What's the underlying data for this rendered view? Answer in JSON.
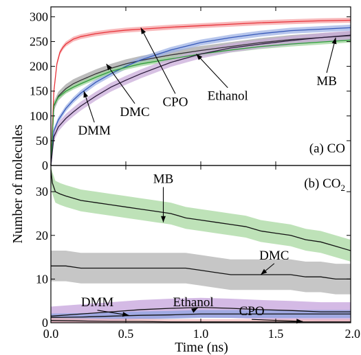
{
  "chart_data": [
    {
      "type": "line",
      "panel_label": "(a) CO",
      "ylabel": "Number of molecules",
      "xlim": [
        0.0,
        2.0
      ],
      "ylim": [
        0,
        320
      ],
      "yticks": [
        "0",
        "50",
        "100",
        "150",
        "200",
        "250",
        "300"
      ],
      "grid": false,
      "series": [
        {
          "name": "CPO",
          "color": "#e8333a",
          "band_color": "#f5a3a6",
          "x": [
            0,
            0.02,
            0.04,
            0.06,
            0.08,
            0.1,
            0.15,
            0.2,
            0.3,
            0.4,
            0.5,
            0.6,
            0.8,
            1.0,
            1.2,
            1.4,
            1.6,
            1.8,
            2.0
          ],
          "y": [
            0,
            150,
            205,
            228,
            238,
            245,
            255,
            260,
            266,
            270,
            273,
            275,
            279,
            282,
            285,
            288,
            290,
            292,
            293
          ],
          "band": 5
        },
        {
          "name": "DMC",
          "color": "#333333",
          "band_color": "#a6a6a6",
          "x": [
            0,
            0.02,
            0.05,
            0.1,
            0.15,
            0.2,
            0.3,
            0.4,
            0.5,
            0.6,
            0.8,
            1.0,
            1.2,
            1.4,
            1.6,
            1.8,
            2.0
          ],
          "y": [
            0,
            120,
            140,
            155,
            165,
            172,
            185,
            196,
            205,
            212,
            223,
            232,
            240,
            248,
            254,
            258,
            262
          ],
          "band": 9
        },
        {
          "name": "DMM",
          "color": "#3658b8",
          "band_color": "#9fb3e6",
          "x": [
            0,
            0.02,
            0.05,
            0.1,
            0.15,
            0.2,
            0.3,
            0.4,
            0.5,
            0.6,
            0.8,
            1.0,
            1.2,
            1.4,
            1.6,
            1.8,
            2.0
          ],
          "y": [
            0,
            70,
            92,
            115,
            132,
            146,
            168,
            185,
            200,
            213,
            233,
            248,
            258,
            266,
            272,
            275,
            278
          ],
          "band": 6
        },
        {
          "name": "Ethanol",
          "color": "#2f9e3a",
          "band_color": "#9fd69c",
          "x": [
            0,
            0.02,
            0.05,
            0.1,
            0.15,
            0.2,
            0.3,
            0.4,
            0.5,
            0.6,
            0.8,
            1.0,
            1.2,
            1.4,
            1.6,
            1.8,
            2.0
          ],
          "y": [
            0,
            122,
            138,
            150,
            158,
            165,
            178,
            190,
            198,
            205,
            215,
            225,
            233,
            240,
            245,
            249,
            253
          ],
          "band": 5
        },
        {
          "name": "MB",
          "color": "#2a1a3a",
          "band_color": "#c9acd9",
          "x": [
            0,
            0.02,
            0.05,
            0.1,
            0.15,
            0.2,
            0.3,
            0.4,
            0.5,
            0.6,
            0.8,
            1.0,
            1.2,
            1.4,
            1.6,
            1.8,
            2.0
          ],
          "y": [
            0,
            58,
            78,
            95,
            108,
            120,
            140,
            158,
            172,
            185,
            208,
            225,
            237,
            245,
            252,
            258,
            263
          ],
          "band": 9
        }
      ],
      "annotations": [
        {
          "text": "CPO",
          "xy": [
            0.6,
            278
          ],
          "xytext": [
            0.83,
            120
          ]
        },
        {
          "text": "DMC",
          "xy": [
            0.37,
            205
          ],
          "xytext": [
            0.56,
            100
          ]
        },
        {
          "text": "DMM",
          "xy": [
            0.22,
            150
          ],
          "xytext": [
            0.29,
            62
          ]
        },
        {
          "text": "Ethanol",
          "xy": [
            0.97,
            225
          ],
          "xytext": [
            1.18,
            132
          ]
        },
        {
          "text": "MB",
          "xy": [
            1.9,
            258
          ],
          "xytext": [
            1.84,
            162
          ]
        }
      ]
    },
    {
      "type": "line",
      "panel_label": "(b) CO",
      "panel_label_sub": "2",
      "xlabel": "Time (ns)",
      "xlim": [
        0.0,
        2.0
      ],
      "ylim": [
        0,
        36
      ],
      "xticks": [
        "0.0",
        "0.5",
        "1.0",
        "1.5",
        "2.0"
      ],
      "yticks": [
        "0",
        "10",
        "20",
        "30"
      ],
      "grid": false,
      "series": [
        {
          "name": "MB",
          "color": "#111111",
          "band_color": "#a8d8a0",
          "x": [
            0,
            0.01,
            0.03,
            0.06,
            0.1,
            0.2,
            0.3,
            0.4,
            0.5,
            0.6,
            0.7,
            0.8,
            0.9,
            1.0,
            1.1,
            1.2,
            1.3,
            1.4,
            1.5,
            1.6,
            1.7,
            1.8,
            1.9,
            2.0
          ],
          "y": [
            35,
            32,
            30,
            29.5,
            29,
            28,
            27.5,
            27,
            26.5,
            26,
            25.5,
            25,
            24,
            23.5,
            23,
            22.5,
            22,
            21,
            20.5,
            20,
            19,
            18.5,
            17.5,
            16.5
          ],
          "band": 2.5
        },
        {
          "name": "DMC",
          "color": "#111111",
          "band_color": "#b3b3b3",
          "x": [
            0,
            0.05,
            0.1,
            0.2,
            0.3,
            0.4,
            0.5,
            0.6,
            0.7,
            0.8,
            0.9,
            1.0,
            1.1,
            1.2,
            1.3,
            1.4,
            1.5,
            1.6,
            1.7,
            1.8,
            1.9,
            2.0
          ],
          "y": [
            13,
            13,
            13,
            12.5,
            12.5,
            12.5,
            12.5,
            12.5,
            12.5,
            12.5,
            12.5,
            12,
            11.5,
            11,
            11,
            11,
            11,
            11,
            10.5,
            10.5,
            10,
            10
          ],
          "band": 3.5
        },
        {
          "name": "Ethanol",
          "color": "#111111",
          "band_color": "#c5a3dc",
          "x": [
            0,
            0.2,
            0.4,
            0.6,
            0.8,
            1.0,
            1.2,
            1.4,
            1.6,
            1.8,
            2.0
          ],
          "y": [
            1.5,
            2,
            2.5,
            3,
            3.3,
            3.5,
            3.3,
            3,
            2.8,
            2.5,
            2.5
          ],
          "band": 2.2
        },
        {
          "name": "DMM",
          "color": "#111111",
          "band_color": "#8fa3e0",
          "x": [
            0,
            0.2,
            0.4,
            0.6,
            0.8,
            1.0,
            1.2,
            1.4,
            1.6,
            1.8,
            2.0
          ],
          "y": [
            1.2,
            1.3,
            1.5,
            1.7,
            1.8,
            2,
            2,
            2,
            2,
            2,
            2
          ],
          "band": 0.9
        },
        {
          "name": "CPO",
          "color": "#111111",
          "band_color": "#f2b8ba",
          "x": [
            0,
            0.2,
            0.4,
            0.6,
            0.8,
            1.0,
            1.2,
            1.4,
            1.6,
            1.8,
            2.0
          ],
          "y": [
            0.5,
            0.4,
            0.3,
            0.3,
            0.2,
            0.2,
            0.2,
            0.2,
            0.2,
            0.2,
            0.2
          ],
          "band": 0.6
        }
      ],
      "annotations": [
        {
          "text": "MB",
          "xy": [
            0.75,
            23
          ],
          "xytext": [
            0.75,
            32
          ]
        },
        {
          "text": "DMC",
          "xy": [
            1.4,
            11
          ],
          "xytext": [
            1.49,
            14.5
          ]
        },
        {
          "text": "DMM",
          "xy": [
            0.52,
            1.7
          ],
          "xytext": [
            0.31,
            3.8
          ]
        },
        {
          "text": "Ethanol",
          "xy": [
            0.98,
            3.4
          ],
          "xytext": [
            0.95,
            3.8
          ]
        },
        {
          "text": "CPO",
          "xy": [
            1.68,
            0.3
          ],
          "xytext": [
            1.34,
            1.7
          ]
        }
      ]
    }
  ]
}
